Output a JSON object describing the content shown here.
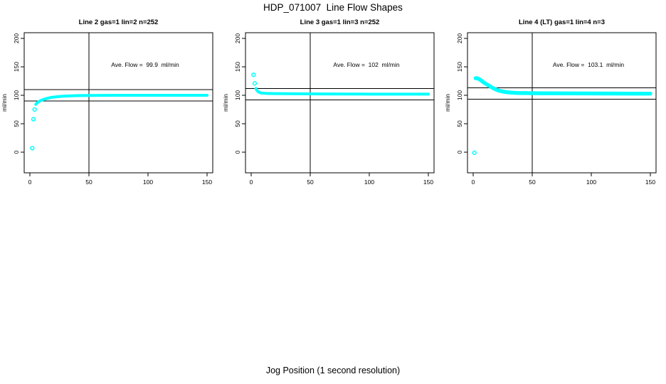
{
  "figure": {
    "title": "HDP_071007  Line Flow Shapes",
    "xlabel": "Jog Position (1 second resolution)"
  },
  "colors": {
    "points": "#00FFFF",
    "axis": "#000000",
    "background": "#FFFFFF"
  },
  "chart_data": [
    {
      "type": "scatter",
      "title": "Line 2 gas=1 lin=2 n=252",
      "annotation": "Ave. Flow =  99.9  ml/min",
      "ave_flow_ml_min": 99.9,
      "n": 252,
      "ylabel": "ml/min",
      "xticks": [
        0,
        50,
        100,
        150
      ],
      "yticks": [
        0,
        50,
        100,
        150,
        200
      ],
      "xlim": [
        0,
        150
      ],
      "ylim": [
        0,
        200
      ],
      "vline_x": 50,
      "hlines": [
        110,
        90
      ],
      "outlier_points": [
        [
          2,
          7
        ],
        [
          3,
          58
        ],
        [
          4,
          75
        ]
      ],
      "band_center": [
        [
          5,
          84
        ],
        [
          6,
          86.5
        ],
        [
          7,
          88
        ],
        [
          8,
          89.5
        ],
        [
          9,
          90.5
        ],
        [
          10,
          91.5
        ],
        [
          12,
          93
        ],
        [
          14,
          94.3
        ],
        [
          16,
          95.3
        ],
        [
          18,
          96.2
        ],
        [
          20,
          96.8
        ],
        [
          23,
          97.5
        ],
        [
          26,
          98.1
        ],
        [
          30,
          98.6
        ],
        [
          35,
          99.1
        ],
        [
          40,
          99.4
        ],
        [
          50,
          99.7
        ],
        [
          60,
          99.9
        ],
        [
          80,
          100
        ],
        [
          100,
          100
        ],
        [
          120,
          100
        ],
        [
          150,
          100
        ]
      ],
      "band_halfwidth": 2.5
    },
    {
      "type": "scatter",
      "title": "Line 3 gas=1 lin=3 n=252",
      "annotation": "Ave. Flow =  102  ml/min",
      "ave_flow_ml_min": 102,
      "n": 252,
      "ylabel": "ml/min",
      "xticks": [
        0,
        50,
        100,
        150
      ],
      "yticks": [
        0,
        50,
        100,
        150,
        200
      ],
      "xlim": [
        0,
        150
      ],
      "ylim": [
        0,
        200
      ],
      "vline_x": 50,
      "hlines": [
        112,
        92
      ],
      "outlier_points": [
        [
          2,
          136
        ],
        [
          3,
          121
        ]
      ],
      "band_center": [
        [
          4,
          112
        ],
        [
          5,
          108
        ],
        [
          6,
          106
        ],
        [
          7,
          105
        ],
        [
          8,
          104.3
        ],
        [
          10,
          103.7
        ],
        [
          12,
          103.4
        ],
        [
          15,
          103.2
        ],
        [
          20,
          103
        ],
        [
          30,
          102.8
        ],
        [
          40,
          102.7
        ],
        [
          60,
          102.4
        ],
        [
          80,
          102.2
        ],
        [
          100,
          102.1
        ],
        [
          150,
          102
        ]
      ],
      "band_halfwidth": 2.5
    },
    {
      "type": "scatter",
      "title": "Line 4 (LT) gas=1 lin=4 n=3",
      "annotation": "Ave. Flow =  103.1  ml/min",
      "ave_flow_ml_min": 103.1,
      "n": 3,
      "ylabel": "ml/min",
      "xticks": [
        0,
        50,
        100,
        150
      ],
      "yticks": [
        0,
        50,
        100,
        150,
        200
      ],
      "xlim": [
        0,
        150
      ],
      "ylim": [
        0,
        200
      ],
      "vline_x": 50,
      "hlines": [
        113,
        93
      ],
      "outlier_points": [
        [
          1,
          -1
        ]
      ],
      "band_center": [
        [
          2,
          130
        ],
        [
          3,
          130
        ],
        [
          4,
          129.5
        ],
        [
          5,
          128.5
        ],
        [
          6,
          127
        ],
        [
          7,
          125.5
        ],
        [
          8,
          124
        ],
        [
          9,
          122.5
        ],
        [
          10,
          121
        ],
        [
          12,
          118.5
        ],
        [
          14,
          116
        ],
        [
          16,
          113.5
        ],
        [
          18,
          111.5
        ],
        [
          20,
          109.5
        ],
        [
          22,
          108
        ],
        [
          25,
          106.5
        ],
        [
          28,
          105.5
        ],
        [
          32,
          104.7
        ],
        [
          36,
          104.2
        ],
        [
          40,
          104
        ],
        [
          50,
          103.7
        ],
        [
          60,
          103.5
        ],
        [
          80,
          103.3
        ],
        [
          100,
          103.2
        ],
        [
          120,
          103
        ],
        [
          150,
          102.9
        ]
      ],
      "band_halfwidth": 3.4
    }
  ]
}
